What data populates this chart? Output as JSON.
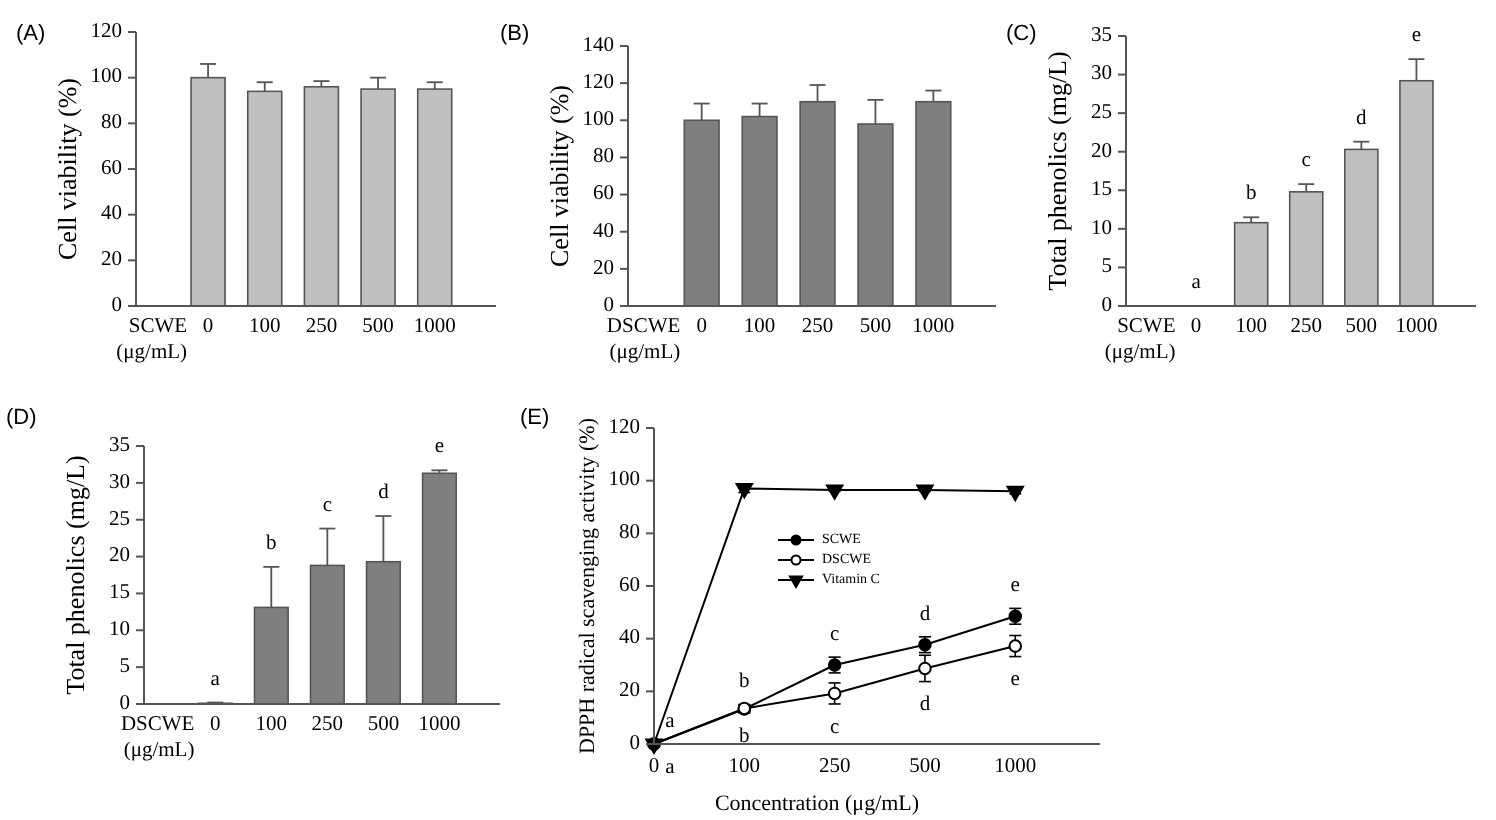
{
  "chart_data": [
    {
      "type": "bar",
      "title": "(A)",
      "ylabel": "Cell viability (%)",
      "xlabel": "SCWE\n(μg/mL)",
      "categories": [
        "0",
        "100",
        "250",
        "500",
        "1000"
      ],
      "values": [
        100,
        94,
        96,
        95,
        95
      ],
      "errors": [
        6,
        4,
        2.5,
        5,
        3
      ],
      "color": "#c0c0c0",
      "ylim": [
        0,
        120
      ],
      "yticks": [
        0,
        20,
        40,
        60,
        80,
        100,
        120
      ],
      "grid": false,
      "legend": false
    },
    {
      "type": "bar",
      "title": "(B)",
      "ylabel": "Cell viability (%)",
      "xlabel": "DSCWE\n(μg/mL)",
      "categories": [
        "0",
        "100",
        "250",
        "500",
        "1000"
      ],
      "values": [
        100,
        102,
        110,
        98,
        110
      ],
      "errors": [
        9,
        7,
        9,
        13,
        6
      ],
      "color": "#7f7f7f",
      "ylim": [
        0,
        140
      ],
      "yticks": [
        0,
        20,
        40,
        60,
        80,
        100,
        120,
        140
      ],
      "grid": false,
      "legend": false
    },
    {
      "type": "bar",
      "title": "(C)",
      "ylabel": "Total phenolics (mg/L)",
      "xlabel": "SCWE\n(μg/mL)",
      "categories": [
        "0",
        "100",
        "250",
        "500",
        "1000"
      ],
      "values": [
        0,
        10.8,
        14.8,
        20.3,
        29.2
      ],
      "errors": [
        null,
        0.7,
        1,
        1,
        2.8
      ],
      "value_labels": [
        "a",
        "b",
        "c",
        "d",
        "e"
      ],
      "color": "#c0c0c0",
      "ylim": [
        0,
        35
      ],
      "yticks": [
        0,
        5,
        10,
        15,
        20,
        25,
        30,
        35
      ],
      "grid": false,
      "legend": false
    },
    {
      "type": "bar",
      "title": "(D)",
      "ylabel": "Total phenolics (mg/L)",
      "xlabel": "DSCWE\n(μg/mL)",
      "categories": [
        "0",
        "100",
        "250",
        "500",
        "1000"
      ],
      "values": [
        0.1,
        13.1,
        18.8,
        19.3,
        31.3
      ],
      "errors": [
        0.1,
        5.5,
        5,
        6.2,
        0.4
      ],
      "value_labels": [
        "a",
        "b",
        "c",
        "d",
        "e"
      ],
      "color": "#7f7f7f",
      "ylim": [
        0,
        35
      ],
      "yticks": [
        0,
        5,
        10,
        15,
        20,
        25,
        30,
        35
      ],
      "grid": false,
      "legend": false
    },
    {
      "type": "line",
      "title": "(E)",
      "ylabel": "DPPH radical scavenging activity (%)",
      "xlabel": "Concentration (μg/mL)",
      "categories": [
        "0",
        "100",
        "250",
        "500",
        "1000"
      ],
      "ylim": [
        0,
        120
      ],
      "yticks": [
        0,
        20,
        40,
        60,
        80,
        100,
        120
      ],
      "grid": false,
      "legend": "top left",
      "line_style": "solid",
      "series": [
        {
          "name": "SCWE",
          "color": "#000000",
          "marker": "circle",
          "values": [
            0,
            13.3,
            30,
            37.7,
            48.5
          ],
          "errors": [
            null,
            1.5,
            3,
            3,
            3
          ],
          "value_labels": [
            "a",
            "b",
            "c",
            "d",
            "e"
          ]
        },
        {
          "name": "DSCWE",
          "color": "#000000",
          "marker": "circle-open",
          "values": [
            0,
            13.5,
            19.2,
            28.7,
            37.2
          ],
          "errors": [
            null,
            1.5,
            4,
            5,
            4
          ],
          "value_labels": [
            "a",
            "b",
            "c",
            "d",
            "e"
          ]
        },
        {
          "name": "Vitamin C",
          "color": "#000000",
          "marker": "triangle",
          "values": [
            0,
            97,
            96.5,
            96.5,
            96
          ],
          "errors": [
            null,
            1.5,
            0.5,
            0.5,
            1
          ]
        }
      ]
    }
  ]
}
